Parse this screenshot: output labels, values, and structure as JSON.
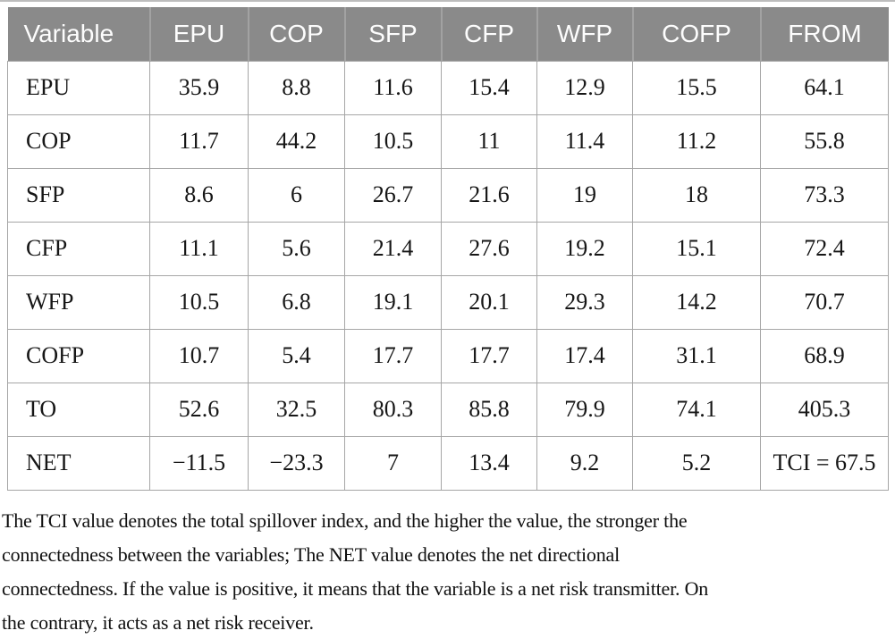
{
  "colors": {
    "header_bg": "#8a8a8a",
    "header_text": "#fdfdfd",
    "grid_border": "#a6a6a6",
    "body_text": "#161616"
  },
  "table": {
    "columns": [
      "Variable",
      "EPU",
      "COP",
      "SFP",
      "CFP",
      "WFP",
      "COFP",
      "FROM"
    ],
    "rows": [
      {
        "label": "EPU",
        "values": [
          "35.9",
          "8.8",
          "11.6",
          "15.4",
          "12.9",
          "15.5",
          "64.1"
        ]
      },
      {
        "label": "COP",
        "values": [
          "11.7",
          "44.2",
          "10.5",
          "11",
          "11.4",
          "11.2",
          "55.8"
        ]
      },
      {
        "label": "SFP",
        "values": [
          "8.6",
          "6",
          "26.7",
          "21.6",
          "19",
          "18",
          "73.3"
        ]
      },
      {
        "label": "CFP",
        "values": [
          "11.1",
          "5.6",
          "21.4",
          "27.6",
          "19.2",
          "15.1",
          "72.4"
        ]
      },
      {
        "label": "WFP",
        "values": [
          "10.5",
          "6.8",
          "19.1",
          "20.1",
          "29.3",
          "14.2",
          "70.7"
        ]
      },
      {
        "label": "COFP",
        "values": [
          "10.7",
          "5.4",
          "17.7",
          "17.7",
          "17.4",
          "31.1",
          "68.9"
        ]
      },
      {
        "label": "TO",
        "values": [
          "52.6",
          "32.5",
          "80.3",
          "85.8",
          "79.9",
          "74.1",
          "405.3"
        ]
      },
      {
        "label": "NET",
        "values": [
          "−11.5",
          "−23.3",
          "7",
          "13.4",
          "9.2",
          "5.2",
          "TCI = 67.5"
        ]
      }
    ],
    "tci_value": "67.5"
  },
  "footnote": {
    "lines": [
      "The TCI value denotes the total spillover index, and the higher the value, the stronger the",
      "connectedness between the variables; The NET value denotes the net directional",
      "connectedness. If the value is positive, it means that the variable is a net risk transmitter. On",
      "the contrary, it acts as a net risk receiver."
    ]
  }
}
